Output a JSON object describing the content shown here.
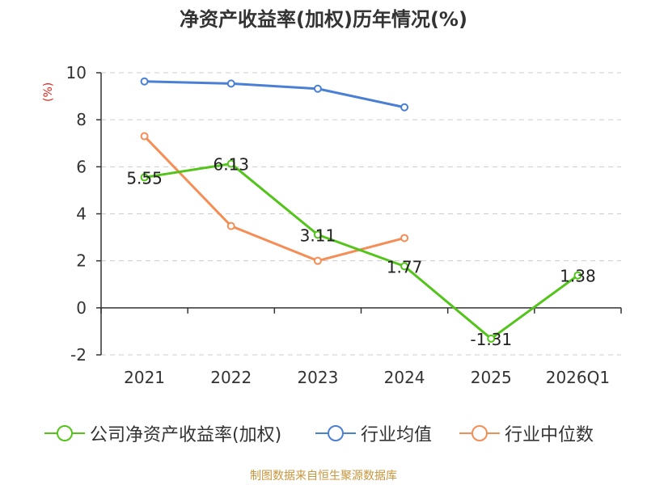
{
  "chart_data": {
    "type": "line",
    "title": "净资产收益率(加权)历年情况(%)",
    "ylabel": "(%)",
    "xlabel": "",
    "categories": [
      "2021",
      "2022",
      "2023",
      "2024",
      "2025",
      "2026Q1"
    ],
    "ylim": [
      -2,
      10
    ],
    "yticks": [
      -2,
      0,
      2,
      4,
      6,
      8,
      10
    ],
    "grid": true,
    "legend_position": "bottom",
    "series": [
      {
        "name": "公司净资产收益率(加权)",
        "color": "#52c41a",
        "values": [
          5.55,
          6.13,
          3.11,
          1.77,
          -1.31,
          1.38
        ],
        "labels": [
          "5.55",
          "6.13",
          "3.11",
          "1.77",
          "-1.31",
          "1.38"
        ]
      },
      {
        "name": "行业均值",
        "color": "#4a7fd6",
        "values": [
          9.63,
          9.54,
          9.32,
          8.53,
          null,
          null
        ]
      },
      {
        "name": "行业中位数",
        "color": "#f58d55",
        "values": [
          7.3,
          3.48,
          2.0,
          2.97,
          null,
          null
        ]
      }
    ]
  },
  "source": "制图数据来自恒生聚源数据库"
}
